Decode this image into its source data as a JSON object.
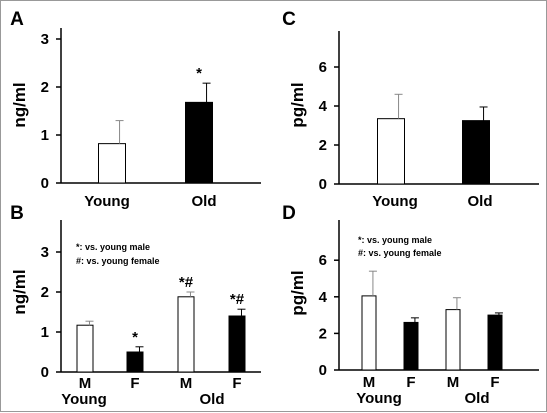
{
  "chart_data": [
    {
      "panel": "A",
      "type": "bar",
      "ylabel": "ng/ml",
      "ylim": [
        0,
        3
      ],
      "yticks": [
        "0",
        "1",
        "2",
        "3"
      ],
      "categories": [
        "Young",
        "Old"
      ],
      "series": [
        {
          "values": [
            0.82,
            1.68
          ],
          "errors": [
            0.48,
            0.4
          ],
          "fills": [
            "#ffffff",
            "#000000"
          ],
          "annotations": [
            "",
            "*"
          ]
        }
      ]
    },
    {
      "panel": "C",
      "type": "bar",
      "ylabel": "pg/ml",
      "ylim": [
        0,
        8
      ],
      "yticks": [
        "0",
        "2",
        "4",
        "6"
      ],
      "categories": [
        "Young",
        "Old"
      ],
      "series": [
        {
          "values": [
            3.35,
            3.25
          ],
          "errors": [
            1.25,
            0.7
          ],
          "fills": [
            "#ffffff",
            "#000000"
          ],
          "annotations": [
            "",
            ""
          ]
        }
      ]
    },
    {
      "panel": "B",
      "type": "bar",
      "ylabel": "ng/ml",
      "ylim": [
        0,
        3
      ],
      "yticks": [
        "0",
        "1",
        "2",
        "3"
      ],
      "categories": [
        "M",
        "F",
        "M",
        "F"
      ],
      "groups": [
        "Young",
        "Old"
      ],
      "notes": [
        "*: vs. young male",
        "#: vs. young female"
      ],
      "series": [
        {
          "values": [
            1.17,
            0.5,
            1.88,
            1.4
          ],
          "errors": [
            0.1,
            0.13,
            0.12,
            0.17
          ],
          "fills": [
            "#ffffff",
            "#000000",
            "#ffffff",
            "#000000"
          ],
          "annotations": [
            "",
            "*",
            "*#",
            "*#"
          ]
        }
      ]
    },
    {
      "panel": "D",
      "type": "bar",
      "ylabel": "pg/ml",
      "ylim": [
        0,
        8
      ],
      "yticks": [
        "0",
        "2",
        "4",
        "6"
      ],
      "categories": [
        "M",
        "F",
        "M",
        "F"
      ],
      "groups": [
        "Young",
        "Old"
      ],
      "notes": [
        "*: vs. young male",
        "#: vs. young female"
      ],
      "series": [
        {
          "values": [
            4.05,
            2.6,
            3.3,
            3.0
          ],
          "errors": [
            1.35,
            0.25,
            0.65,
            0.12
          ],
          "fills": [
            "#ffffff",
            "#000000",
            "#ffffff",
            "#000000"
          ],
          "annotations": [
            "",
            "",
            "",
            ""
          ]
        }
      ]
    }
  ]
}
